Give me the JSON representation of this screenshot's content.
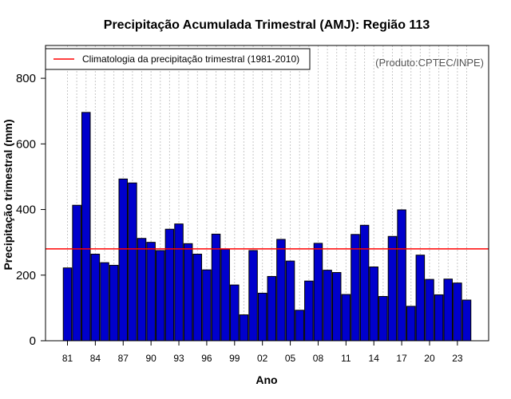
{
  "chart_data": {
    "type": "bar",
    "title": "Precipitação Acumulada Trimestral (AMJ): Região 113",
    "xlabel": "Ano",
    "ylabel": "Precipitação trimestral (mm)",
    "ylim": [
      0,
      900
    ],
    "yticks": [
      0,
      200,
      400,
      600,
      800
    ],
    "years": [
      1981,
      1982,
      1983,
      1984,
      1985,
      1986,
      1987,
      1988,
      1989,
      1990,
      1991,
      1992,
      1993,
      1994,
      1995,
      1996,
      1997,
      1998,
      1999,
      2000,
      2001,
      2002,
      2003,
      2004,
      2005,
      2006,
      2007,
      2008,
      2009,
      2010,
      2011,
      2012,
      2013,
      2014,
      2015,
      2016,
      2017,
      2018,
      2019,
      2020,
      2021,
      2022,
      2023,
      2024
    ],
    "values": [
      222,
      413,
      696,
      264,
      238,
      230,
      493,
      481,
      312,
      300,
      275,
      340,
      356,
      296,
      264,
      216,
      325,
      279,
      170,
      79,
      275,
      145,
      196,
      309,
      243,
      93,
      182,
      297,
      215,
      208,
      141,
      324,
      352,
      225,
      135,
      318,
      399,
      105,
      261,
      187,
      140,
      188,
      176,
      124
    ],
    "xtick_labels": [
      "81",
      "84",
      "87",
      "90",
      "93",
      "96",
      "99",
      "02",
      "05",
      "08",
      "11",
      "14",
      "17",
      "20",
      "23"
    ],
    "climatology": {
      "label": "Climatologia da precipitação trimestral (1981-2010)",
      "value": 280,
      "color": "#ff0000"
    },
    "bar_color": "#0000cc",
    "grid": "vertical-dotted",
    "legend_position": "top-left",
    "credit": "(Produto:CPTEC/INPE)"
  }
}
